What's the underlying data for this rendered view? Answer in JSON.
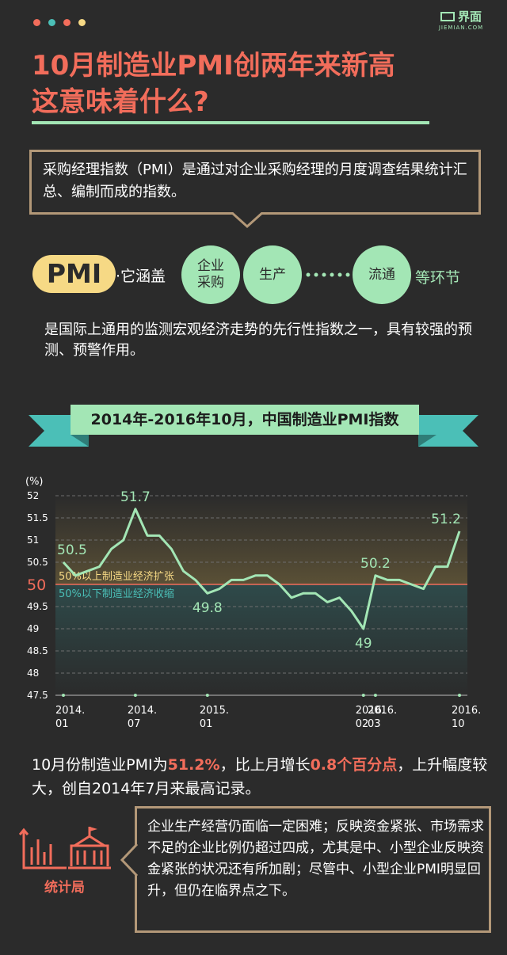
{
  "header": {
    "dot_colors": [
      "#f26d5b",
      "#4bbfb7",
      "#f26d5b",
      "#f6d985"
    ],
    "logo_text": "界面",
    "logo_sub": "JIEMIAN.COM",
    "title_line1": "10月制造业PMI创两年来新高",
    "title_line2": "这意味着什么?"
  },
  "definition": "采购经理指数（PMI）是通过对企业采购经理的月度调查结果统计汇总、编制而成的指数。",
  "pmi_row": {
    "pill": "PMI",
    "covers": "·它涵盖",
    "circle1": "企业 采购",
    "circle2": "生产",
    "circle3": "流通",
    "tail": "等环节"
  },
  "description": "是国际上通用的监测宏观经济走势的先行性指数之一，具有较强的预测、预警作用。",
  "chart_title": "2014年-2016年10月，中国制造业PMI指数",
  "chart_data": {
    "type": "line",
    "title": "2014年-2016年10月，中国制造业PMI指数",
    "ylabel": "(%)",
    "ylim": [
      47.5,
      52
    ],
    "yticks": [
      47.5,
      48,
      48.5,
      49,
      49.5,
      50,
      50.5,
      51,
      51.5,
      52
    ],
    "threshold": 50,
    "threshold_label": "50",
    "expand_label": "50%以上制造业经济扩张",
    "contract_label": "50%以下制造业经济收缩",
    "x": [
      "2014.01",
      "2014.02",
      "2014.03",
      "2014.04",
      "2014.05",
      "2014.06",
      "2014.07",
      "2014.08",
      "2014.09",
      "2014.10",
      "2014.11",
      "2014.12",
      "2015.01",
      "2015.02",
      "2015.03",
      "2015.04",
      "2015.05",
      "2015.06",
      "2015.07",
      "2015.08",
      "2015.09",
      "2015.10",
      "2015.11",
      "2015.12",
      "2016.01",
      "2016.02",
      "2016.03",
      "2016.04",
      "2016.05",
      "2016.06",
      "2016.07",
      "2016.08",
      "2016.09",
      "2016.10"
    ],
    "values": [
      50.5,
      50.2,
      50.3,
      50.4,
      50.8,
      51.0,
      51.7,
      51.1,
      51.1,
      50.8,
      50.3,
      50.1,
      49.8,
      49.9,
      50.1,
      50.1,
      50.2,
      50.2,
      50.0,
      49.7,
      49.8,
      49.8,
      49.6,
      49.7,
      49.4,
      49.0,
      50.2,
      50.1,
      50.1,
      50.0,
      49.9,
      50.4,
      50.4,
      51.2
    ],
    "tick_labels": [
      {
        "x": "2014.01",
        "l1": "2014.",
        "l2": "01"
      },
      {
        "x": "2014.07",
        "l1": "2014.",
        "l2": "07"
      },
      {
        "x": "2015.01",
        "l1": "2015.",
        "l2": "01"
      },
      {
        "x": "2016.02",
        "l1": "2016.",
        "l2": "02"
      },
      {
        "x": "2016.03",
        "l1": "2016.",
        "l2": "03"
      },
      {
        "x": "2016.10",
        "l1": "2016.",
        "l2": "10"
      }
    ],
    "annotations": [
      {
        "x": "2014.01",
        "label": "50.5",
        "pos": "above"
      },
      {
        "x": "2014.07",
        "label": "51.7",
        "pos": "above"
      },
      {
        "x": "2015.01",
        "label": "49.8",
        "pos": "below"
      },
      {
        "x": "2016.02",
        "label": "49",
        "pos": "below"
      },
      {
        "x": "2016.03",
        "label": "50.2",
        "pos": "above"
      },
      {
        "x": "2016.10",
        "label": "51.2",
        "pos": "above"
      }
    ],
    "colors": {
      "line": "#a3e6b5",
      "threshold": "#f26d5b",
      "expand": "#f6d985",
      "contract": "#4bbfb7"
    }
  },
  "summary": {
    "p1": "10月份制造业PMI为",
    "v1": "51.2%",
    "p2": "，比上月增长",
    "v2": "0.8个百分点",
    "p3": "，上升幅度较大，创自2014年7月来最高记录。"
  },
  "source_label": "统计局",
  "note": "企业生产经营仍面临一定困难；反映资金紧张、市场需求不足的企业比例仍超过四成，尤其是中、小型企业反映资金紧张的状况还有所加剧；尽管中、小型企业PMI明显回升，但仍在临界点之下。"
}
